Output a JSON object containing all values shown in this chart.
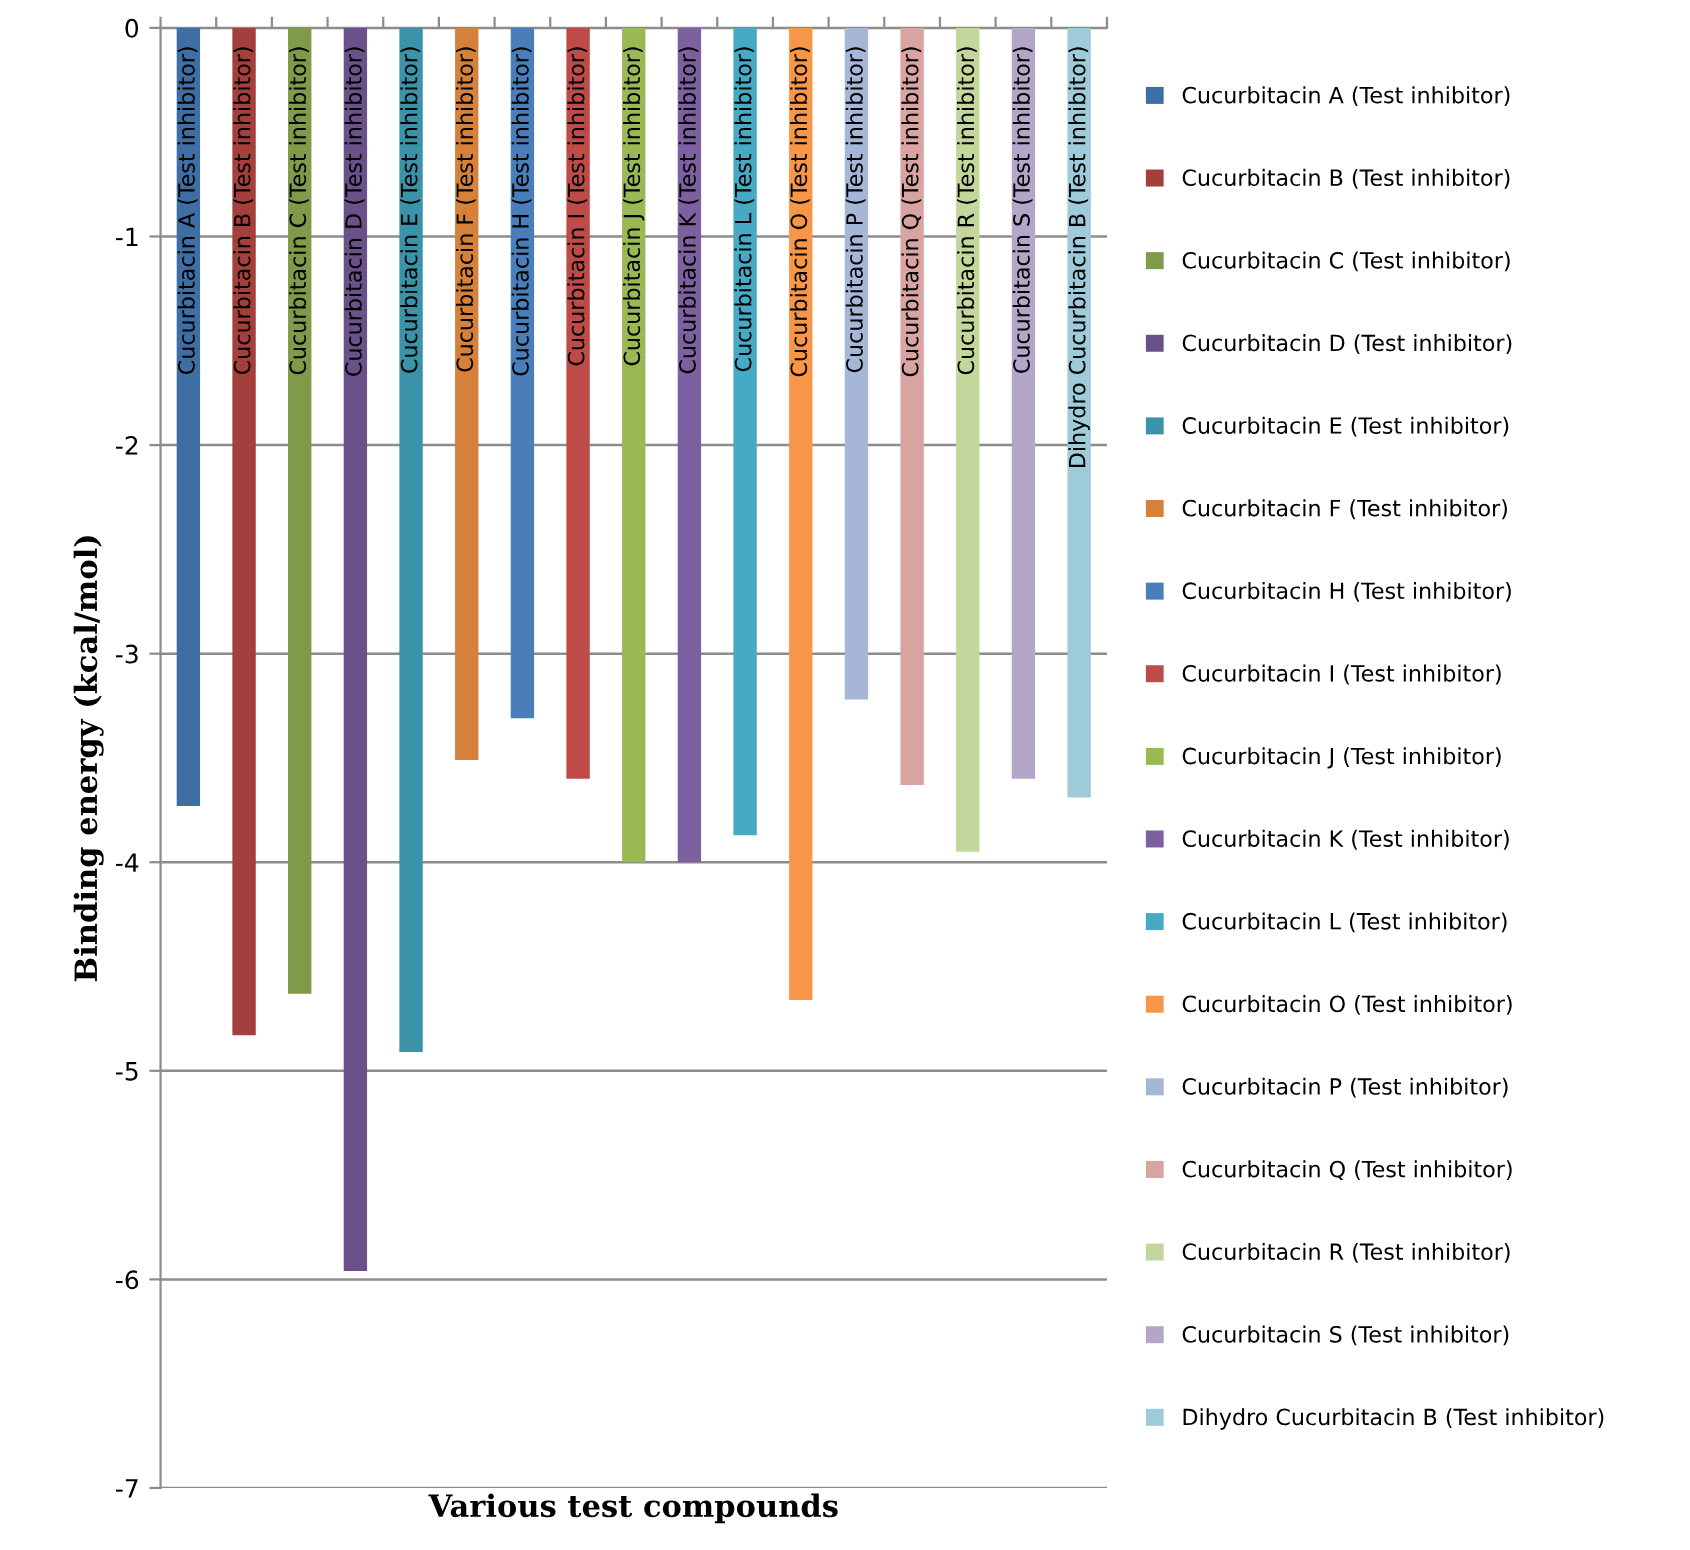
{
  "chart_data": {
    "type": "bar",
    "xlabel": "Various test compounds",
    "ylabel": "Binding energy (kcal/mol)",
    "categories": [
      null
    ],
    "series": [
      {
        "name": "Cucurbitacin A (Test inhibitor)",
        "color": "#3e6ea4",
        "values": [
          -3.73
        ]
      },
      {
        "name": "Cucurbitacin B (Test inhibitor)",
        "color": "#a43f3c",
        "values": [
          -4.83
        ]
      },
      {
        "name": "Cucurbitacin C (Test inhibitor)",
        "color": "#7f9a48",
        "values": [
          -4.63
        ]
      },
      {
        "name": "Cucurbitacin D (Test inhibitor)",
        "color": "#6a518a",
        "values": [
          -5.96
        ]
      },
      {
        "name": "Cucurbitacin E (Test inhibitor)",
        "color": "#3a93a8",
        "values": [
          -4.91
        ]
      },
      {
        "name": "Cucurbitacin F (Test inhibitor)",
        "color": "#d6813a",
        "values": [
          -3.51
        ]
      },
      {
        "name": "Cucurbitacin H (Test inhibitor)",
        "color": "#4a7ebb",
        "values": [
          -3.31
        ]
      },
      {
        "name": "Cucurbitacin I (Test inhibitor)",
        "color": "#be4b48",
        "values": [
          -3.6
        ]
      },
      {
        "name": "Cucurbitacin J (Test inhibitor)",
        "color": "#98b954",
        "values": [
          -4.0
        ]
      },
      {
        "name": "Cucurbitacin K (Test inhibitor)",
        "color": "#7d60a0",
        "values": [
          -4.0
        ]
      },
      {
        "name": "Cucurbitacin L (Test inhibitor)",
        "color": "#46aac5",
        "values": [
          -3.87
        ]
      },
      {
        "name": "Cucurbitacin O (Test inhibitor)",
        "color": "#f79646",
        "values": [
          -4.66
        ]
      },
      {
        "name": "Cucurbitacin P (Test inhibitor)",
        "color": "#a5b6d6",
        "values": [
          -3.22
        ]
      },
      {
        "name": "Cucurbitacin Q (Test inhibitor)",
        "color": "#d9a3a2",
        "values": [
          -3.63
        ]
      },
      {
        "name": "Cucurbitacin R (Test inhibitor)",
        "color": "#c3d69b",
        "values": [
          -3.95
        ]
      },
      {
        "name": "Cucurbitacin S (Test inhibitor)",
        "color": "#b3a6c9",
        "values": [
          -3.6
        ]
      },
      {
        "name": "Dihydro Cucurbitacin B (Test inhibitor)",
        "color": "#9dcbd9",
        "values": [
          -3.69
        ]
      }
    ],
    "ylim": [
      -7,
      0
    ],
    "yticks": [
      -7,
      -6,
      -5,
      -4,
      -3,
      -2,
      -1,
      0
    ],
    "grid": "y",
    "legend": "right"
  }
}
